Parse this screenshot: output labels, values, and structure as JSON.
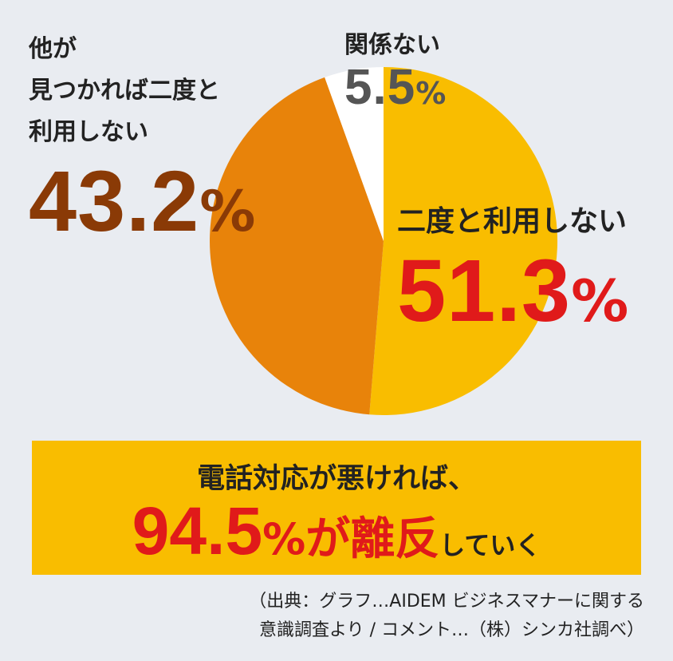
{
  "chart_data": {
    "type": "pie",
    "title": "",
    "slices": [
      {
        "label": "二度と利用しない",
        "value": 51.3,
        "color": "#f9bd00"
      },
      {
        "label": "他が見つかれば二度と利用しない",
        "value": 43.2,
        "color": "#e8830a"
      },
      {
        "label": "関係ない",
        "value": 5.5,
        "color": "#ffffff"
      }
    ],
    "start_angle_deg": 0,
    "direction": "clockwise"
  },
  "labels": {
    "keep": {
      "line1": "他が",
      "line2": "見つかれば二度と",
      "line3": "利用しない",
      "value": "43.2",
      "unit": "%"
    },
    "none": {
      "line1": "関係ない",
      "value": "5.5",
      "unit": "%"
    },
    "twice": {
      "line1": "二度と利用しない",
      "value": "51.3",
      "unit": "%"
    }
  },
  "banner": {
    "line1": "電話対応が悪ければ、",
    "value": "94.5",
    "unit": "%",
    "emphasis": "が離反",
    "tail": "していく"
  },
  "source": {
    "line1": "（出典：グラフ…AIDEM ビジネスマナーに関する",
    "line2": "意識調査より / コメント…（株）シンカ社調べ）"
  }
}
